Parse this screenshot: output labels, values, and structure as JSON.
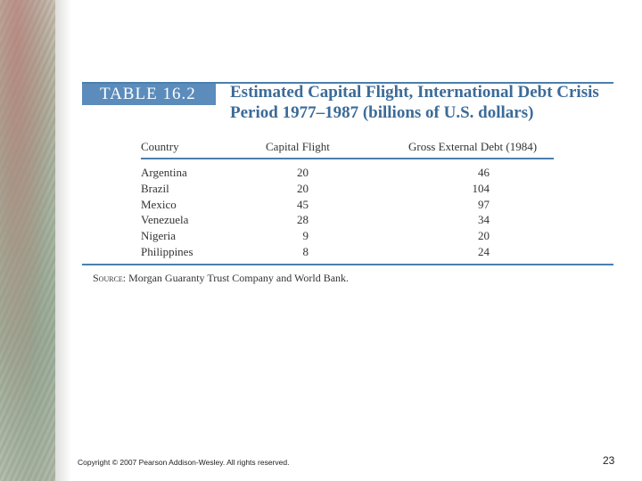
{
  "table": {
    "label": "TABLE 16.2",
    "title_line1": "Estimated Capital Flight, International Debt Crisis",
    "title_line2": "Period 1977–1987 (billions of U.S. dollars)",
    "columns": [
      "Country",
      "Capital Flight",
      "Gross External Debt (1984)"
    ],
    "rows": [
      {
        "country": "Argentina",
        "capital_flight": "20",
        "external_debt": "46"
      },
      {
        "country": "Brazil",
        "capital_flight": "20",
        "external_debt": "104"
      },
      {
        "country": "Mexico",
        "capital_flight": "45",
        "external_debt": "97"
      },
      {
        "country": "Venezuela",
        "capital_flight": "28",
        "external_debt": "34"
      },
      {
        "country": "Nigeria",
        "capital_flight": "9",
        "external_debt": "20"
      },
      {
        "country": "Philippines",
        "capital_flight": "8",
        "external_debt": "24"
      }
    ],
    "source_label": "Source:",
    "source_text": "Morgan Guaranty Trust Company and World Bank."
  },
  "footer": {
    "copyright": "Copyright © 2007 Pearson Addison-Wesley. All rights reserved.",
    "page_number": "23"
  },
  "colors": {
    "accent": "#4a7fae",
    "label_box": "#5b8cbc",
    "title": "#3b6b99"
  }
}
